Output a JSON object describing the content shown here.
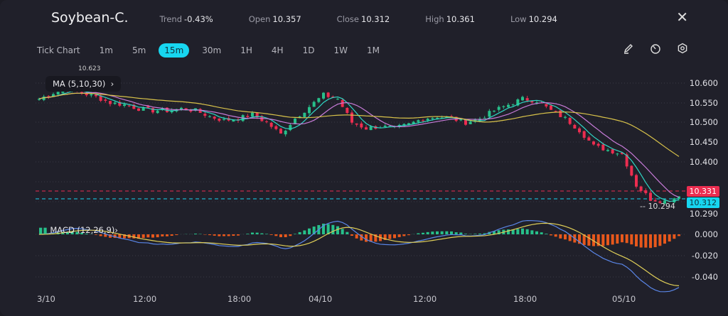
{
  "header": {
    "symbol": "Soybean-C.",
    "trend_label": "Trend",
    "trend": "-0.43%",
    "open_label": "Open",
    "open": "10.357",
    "close_label": "Close",
    "close": "10.312",
    "high_label": "High",
    "high": "10.361",
    "low_label": "Low",
    "low": "10.294"
  },
  "timeframes": [
    {
      "label": "Tick Chart"
    },
    {
      "label": "1m"
    },
    {
      "label": "5m"
    },
    {
      "label": "15m",
      "active": true
    },
    {
      "label": "30m"
    },
    {
      "label": "1H"
    },
    {
      "label": "4H"
    },
    {
      "label": "1D"
    },
    {
      "label": "1W"
    },
    {
      "label": "1M"
    }
  ],
  "toolbar": {
    "icons": [
      "pencil-icon",
      "timer-icon",
      "settings-icon"
    ]
  },
  "ma": {
    "label": "MA (5,10,30)",
    "high_marker": "10.623",
    "colors": [
      "#2fd6c4",
      "#c77bd8",
      "#d8c24a"
    ]
  },
  "macd": {
    "label": "MACD (12,26,9)",
    "colors": {
      "dif": "#5a86e8",
      "dea": "#e0cf58",
      "up": "#27c08a",
      "down": "#e8581c"
    }
  },
  "price_axis": [
    "10.600",
    "10.550",
    "10.500",
    "10.450",
    "10.400",
    "10.290"
  ],
  "macd_axis": [
    "0.000",
    "-0.020",
    "-0.040"
  ],
  "time_axis": [
    "3/10",
    "12:00",
    "18:00",
    "04/10",
    "12:00",
    "18:00",
    "05/10"
  ],
  "tags": {
    "prev": "10.331",
    "last": "10.312",
    "low_marker": "10.294"
  },
  "colors": {
    "up": "#27c08a",
    "down": "#ec2d50",
    "accent": "#17d6f0"
  },
  "closes": [
    10.56,
    10.575,
    10.585,
    10.575,
    10.565,
    10.55,
    10.545,
    10.535,
    10.53,
    10.53,
    10.535,
    10.53,
    10.515,
    10.505,
    10.51,
    10.52,
    10.5,
    10.47,
    10.51,
    10.54,
    10.57,
    10.56,
    10.5,
    10.485,
    10.49,
    10.485,
    10.495,
    10.51,
    10.515,
    10.51,
    10.5,
    10.51,
    10.53,
    10.545,
    10.56,
    10.555,
    10.53,
    10.51,
    10.48,
    10.44,
    10.43,
    10.42,
    10.34,
    10.305,
    10.3,
    10.312
  ]
}
